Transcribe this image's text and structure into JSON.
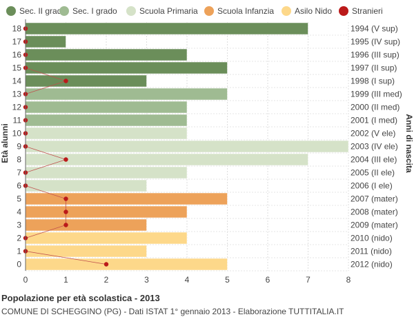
{
  "caption": {
    "title": "Popolazione per età scolastica - 2013",
    "subtitle": "COMUNE DI SCHEGGINO (PG) - Dati ISTAT 1° gennaio 2013 - Elaborazione TUTTITALIA.IT"
  },
  "chart_data": {
    "type": "bar",
    "orientation": "horizontal",
    "ylabel_left": "Età alunni",
    "ylabel_right": "Anni di nascita",
    "xlim": [
      0,
      8
    ],
    "x_ticks": [
      0,
      1,
      2,
      3,
      4,
      5,
      6,
      7,
      8
    ],
    "grid": true,
    "legend_position": "top",
    "legend": [
      {
        "name": "Sec. II grado",
        "color": "#6b8e5a"
      },
      {
        "name": "Sec. I grado",
        "color": "#9fbb92"
      },
      {
        "name": "Scuola Primaria",
        "color": "#d5e2c8"
      },
      {
        "name": "Scuola Infanzia",
        "color": "#eda25a"
      },
      {
        "name": "Asilo Nido",
        "color": "#fdd88a"
      },
      {
        "name": "Stranieri",
        "color": "#bb1a1a"
      }
    ],
    "rows": [
      {
        "age": "18",
        "birth": "1994 (V sup)",
        "value": 7,
        "foreign": 0,
        "group": 0
      },
      {
        "age": "17",
        "birth": "1995 (IV sup)",
        "value": 1,
        "foreign": 0,
        "group": 0
      },
      {
        "age": "16",
        "birth": "1996 (III sup)",
        "value": 4,
        "foreign": 0,
        "group": 0
      },
      {
        "age": "15",
        "birth": "1997 (II sup)",
        "value": 5,
        "foreign": 0,
        "group": 0
      },
      {
        "age": "14",
        "birth": "1998 (I sup)",
        "value": 3,
        "foreign": 1,
        "group": 0
      },
      {
        "age": "13",
        "birth": "1999 (III med)",
        "value": 5,
        "foreign": 0,
        "group": 1
      },
      {
        "age": "12",
        "birth": "2000 (II med)",
        "value": 4,
        "foreign": 0,
        "group": 1
      },
      {
        "age": "11",
        "birth": "2001 (I med)",
        "value": 4,
        "foreign": 0,
        "group": 1
      },
      {
        "age": "10",
        "birth": "2002 (V ele)",
        "value": 4,
        "foreign": 0,
        "group": 2
      },
      {
        "age": "9",
        "birth": "2003 (IV ele)",
        "value": 8,
        "foreign": 0,
        "group": 2
      },
      {
        "age": "8",
        "birth": "2004 (III ele)",
        "value": 7,
        "foreign": 1,
        "group": 2
      },
      {
        "age": "7",
        "birth": "2005 (II ele)",
        "value": 4,
        "foreign": 0,
        "group": 2
      },
      {
        "age": "6",
        "birth": "2006 (I ele)",
        "value": 3,
        "foreign": 0,
        "group": 2
      },
      {
        "age": "5",
        "birth": "2007 (mater)",
        "value": 5,
        "foreign": 1,
        "group": 3
      },
      {
        "age": "4",
        "birth": "2008 (mater)",
        "value": 4,
        "foreign": 1,
        "group": 3
      },
      {
        "age": "3",
        "birth": "2009 (mater)",
        "value": 3,
        "foreign": 1,
        "group": 3
      },
      {
        "age": "2",
        "birth": "2010 (nido)",
        "value": 4,
        "foreign": 0,
        "group": 4
      },
      {
        "age": "1",
        "birth": "2011 (nido)",
        "value": 3,
        "foreign": 0,
        "group": 4
      },
      {
        "age": "0",
        "birth": "2012 (nido)",
        "value": 5,
        "foreign": 2,
        "group": 4
      }
    ]
  }
}
